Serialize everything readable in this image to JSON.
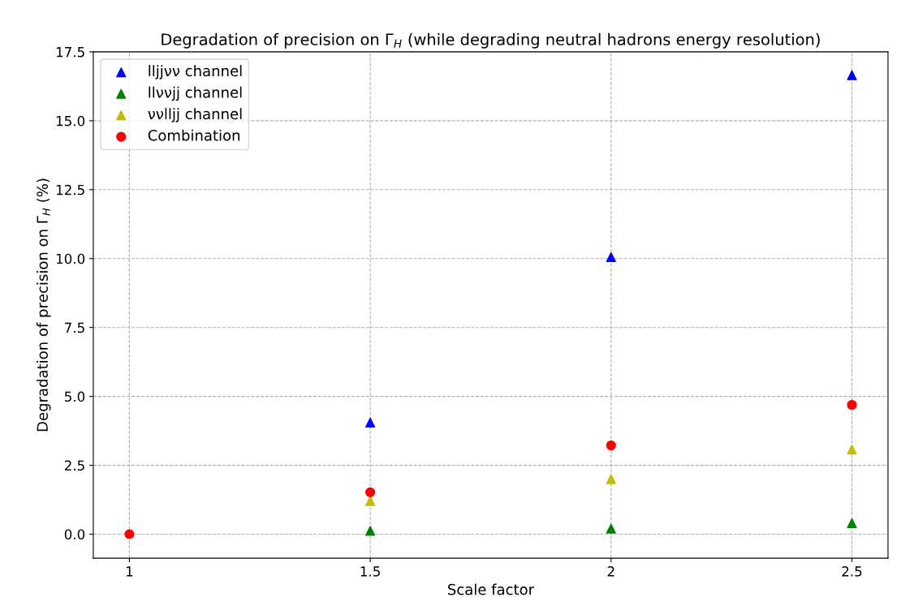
{
  "chart_data": {
    "type": "scatter",
    "title": "Degradation of precision on Γ$_{H}$ (while degrading neutral hadrons energy resolution)",
    "xlabel": "Scale factor",
    "ylabel": "Degradation of precision on Γ$_{H}$ (%)",
    "x": [
      1,
      1.5,
      2,
      2.5
    ],
    "series": [
      {
        "name": "lljjνν channel",
        "color": "#0000ff",
        "marker": "triangle",
        "values": [
          null,
          4.05,
          10.05,
          16.65
        ]
      },
      {
        "name": "llννjj channel",
        "color": "#008000",
        "marker": "triangle",
        "values": [
          null,
          0.12,
          0.2,
          0.4
        ]
      },
      {
        "name": "ννlljj channel",
        "color": "#bfbf00",
        "marker": "triangle",
        "values": [
          null,
          1.2,
          2.0,
          3.07
        ]
      },
      {
        "name": "Combination",
        "color": "#ff0000",
        "marker": "circle",
        "values": [
          0,
          1.52,
          3.22,
          4.69
        ]
      }
    ],
    "xlim": [
      0.925,
      2.575
    ],
    "xticks": [
      1,
      {
        "value": 1.5,
        "label": "1.5"
      },
      2,
      {
        "value": 2.5,
        "label": "2.5"
      }
    ],
    "ylim": [
      -0.87,
      17.5
    ],
    "yticks": [
      {
        "value": 0,
        "label": "0.0"
      },
      {
        "value": 2.5,
        "label": "2.5"
      },
      {
        "value": 5,
        "label": "5.0"
      },
      {
        "value": 7.5,
        "label": "7.5"
      },
      {
        "value": 10,
        "label": "10.0"
      },
      {
        "value": 12.5,
        "label": "12.5"
      },
      {
        "value": 15,
        "label": "15.0"
      },
      {
        "value": 17.5,
        "label": "17.5"
      }
    ],
    "grid": true,
    "line_style": "dashed",
    "legend": "top left"
  }
}
